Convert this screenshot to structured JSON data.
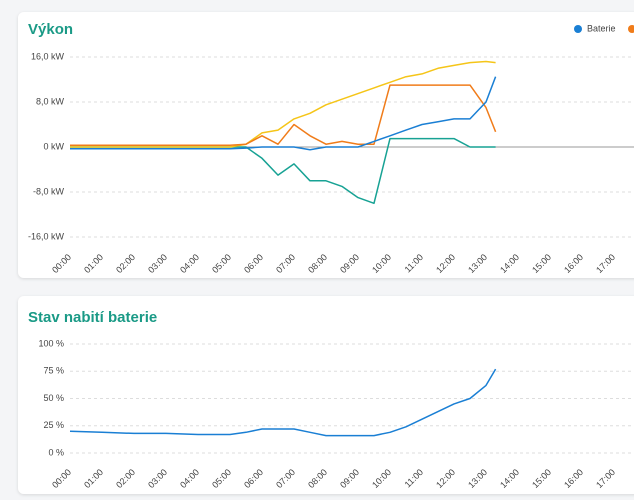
{
  "chart_data": [
    {
      "type": "line",
      "title": "Výkon",
      "x": [
        0,
        0.5,
        1,
        1.5,
        2,
        2.5,
        3,
        3.5,
        4,
        4.5,
        5,
        5.5,
        6,
        6.5,
        7,
        7.5,
        8,
        8.5,
        9,
        9.5,
        10,
        10.5,
        11,
        11.5,
        12,
        12.5,
        13,
        13.3
      ],
      "series": [
        {
          "name": "Baterie",
          "color": "#1a7fd4",
          "values": [
            -0.3,
            -0.3,
            -0.3,
            -0.3,
            -0.3,
            -0.3,
            -0.3,
            -0.3,
            -0.3,
            -0.3,
            -0.3,
            -0.2,
            0,
            0,
            0,
            -0.5,
            0,
            0,
            0,
            1,
            2,
            3,
            4,
            4.5,
            5,
            5,
            8,
            12.5
          ]
        },
        {
          "color": "#f07c1a",
          "values": [
            0.3,
            0.3,
            0.3,
            0.3,
            0.3,
            0.3,
            0.3,
            0.3,
            0.3,
            0.3,
            0.3,
            0.5,
            2,
            0.5,
            4,
            2,
            0.5,
            1,
            0.5,
            0.5,
            11,
            11,
            11,
            11,
            11,
            11,
            7,
            2.7
          ]
        },
        {
          "color": "#f5c518",
          "values": [
            0,
            0,
            0,
            0,
            0,
            0,
            0,
            0,
            0,
            0,
            0,
            0.5,
            2.5,
            3,
            5,
            6,
            7.5,
            8.5,
            9.5,
            10.5,
            11.5,
            12.5,
            13,
            14,
            14.5,
            15,
            15.2,
            15
          ]
        },
        {
          "color": "#17a294",
          "values": [
            0,
            0,
            0,
            0,
            0,
            0,
            0,
            0,
            0,
            0,
            0,
            0,
            -2,
            -5,
            -3,
            -6,
            -6,
            -7,
            -9,
            -10,
            1.5,
            1.5,
            1.5,
            1.5,
            1.5,
            0,
            0,
            0
          ]
        }
      ],
      "xlim": [
        0,
        17
      ],
      "xticks": [
        {
          "value": 0,
          "label": "00:00"
        },
        {
          "value": 1,
          "label": "01:00"
        },
        {
          "value": 2,
          "label": "02:00"
        },
        {
          "value": 3,
          "label": "03:00"
        },
        {
          "value": 4,
          "label": "04:00"
        },
        {
          "value": 5,
          "label": "05:00"
        },
        {
          "value": 6,
          "label": "06:00"
        },
        {
          "value": 7,
          "label": "07:00"
        },
        {
          "value": 8,
          "label": "08:00"
        },
        {
          "value": 9,
          "label": "09:00"
        },
        {
          "value": 10,
          "label": "10:00"
        },
        {
          "value": 11,
          "label": "11:00"
        },
        {
          "value": 12,
          "label": "12:00"
        },
        {
          "value": 13,
          "label": "13:00"
        },
        {
          "value": 14,
          "label": "14:00"
        },
        {
          "value": 15,
          "label": "15:00"
        },
        {
          "value": 16,
          "label": "16:00"
        },
        {
          "value": 17,
          "label": "17:00"
        }
      ],
      "ylim": [
        -16,
        16
      ],
      "yticks": [
        {
          "value": 16,
          "label": "16,0 kW"
        },
        {
          "value": 8,
          "label": "8,0 kW"
        },
        {
          "value": 0,
          "label": "0 kW"
        },
        {
          "value": -8,
          "label": "-8,0 kW"
        },
        {
          "value": -16,
          "label": "-16,0 kW"
        }
      ],
      "grid": true
    },
    {
      "type": "line",
      "title": "Stav nabití baterie",
      "x": [
        0,
        1,
        2,
        3,
        4,
        5,
        5.5,
        6,
        7,
        7.5,
        8,
        9,
        9.5,
        10,
        10.5,
        11,
        11.5,
        12,
        12.5,
        13,
        13.3
      ],
      "values": [
        20,
        19,
        18,
        18,
        17,
        17,
        19,
        22,
        22,
        19,
        16,
        16,
        16,
        19,
        24,
        31,
        38,
        45,
        50,
        62,
        77
      ],
      "color": "#1a7fd4",
      "xlim": [
        0,
        17
      ],
      "xticks": [
        {
          "value": 0,
          "label": "00:00"
        },
        {
          "value": 1,
          "label": "01:00"
        },
        {
          "value": 2,
          "label": "02:00"
        },
        {
          "value": 3,
          "label": "03:00"
        },
        {
          "value": 4,
          "label": "04:00"
        },
        {
          "value": 5,
          "label": "05:00"
        },
        {
          "value": 6,
          "label": "06:00"
        },
        {
          "value": 7,
          "label": "07:00"
        },
        {
          "value": 8,
          "label": "08:00"
        },
        {
          "value": 9,
          "label": "09:00"
        },
        {
          "value": 10,
          "label": "10:00"
        },
        {
          "value": 11,
          "label": "11:00"
        },
        {
          "value": 12,
          "label": "12:00"
        },
        {
          "value": 13,
          "label": "13:00"
        },
        {
          "value": 14,
          "label": "14:00"
        },
        {
          "value": 15,
          "label": "15:00"
        },
        {
          "value": 16,
          "label": "16:00"
        },
        {
          "value": 17,
          "label": "17:00"
        }
      ],
      "ylim": [
        0,
        100
      ],
      "yticks": [
        {
          "value": 100,
          "label": "100 %"
        },
        {
          "value": 75,
          "label": "75 %"
        },
        {
          "value": 50,
          "label": "50 %"
        },
        {
          "value": 25,
          "label": "25 %"
        },
        {
          "value": 0,
          "label": "0 %"
        }
      ],
      "grid": true
    }
  ]
}
